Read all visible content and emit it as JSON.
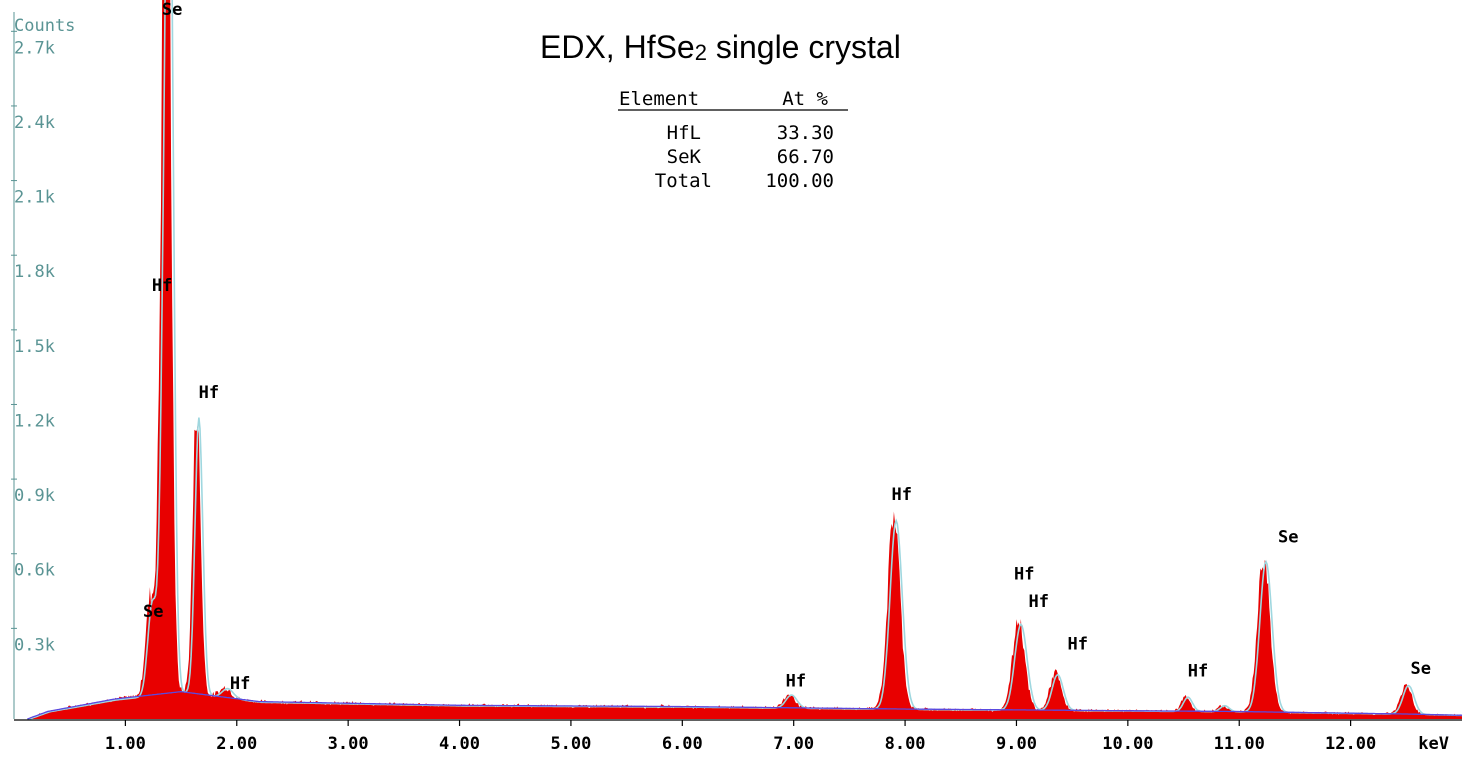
{
  "chart_data": {
    "type": "area",
    "title": {
      "main": "EDX, HfSe",
      "subscript": "2",
      "rest": " single crystal"
    },
    "ylabel": "Counts",
    "xlabel": "keV",
    "xlim": [
      0,
      13.0
    ],
    "ylim": [
      0,
      2850
    ],
    "yticks": [
      {
        "value": 300,
        "label": "0.3k"
      },
      {
        "value": 600,
        "label": "0.6k"
      },
      {
        "value": 900,
        "label": "0.9k"
      },
      {
        "value": 1200,
        "label": "1.2k"
      },
      {
        "value": 1500,
        "label": "1.5k"
      },
      {
        "value": 1800,
        "label": "1.8k"
      },
      {
        "value": 2100,
        "label": "2.1k"
      },
      {
        "value": 2400,
        "label": "2.4k"
      },
      {
        "value": 2700,
        "label": "2.7k"
      }
    ],
    "xticks": [
      {
        "value": 1.0,
        "label": "1.00"
      },
      {
        "value": 2.0,
        "label": "2.00"
      },
      {
        "value": 3.0,
        "label": "3.00"
      },
      {
        "value": 4.0,
        "label": "4.00"
      },
      {
        "value": 5.0,
        "label": "5.00"
      },
      {
        "value": 6.0,
        "label": "6.00"
      },
      {
        "value": 7.0,
        "label": "7.00"
      },
      {
        "value": 8.0,
        "label": "8.00"
      },
      {
        "value": 9.0,
        "label": "9.00"
      },
      {
        "value": 10.0,
        "label": "10.00"
      },
      {
        "value": 11.0,
        "label": "11.00"
      },
      {
        "value": 12.0,
        "label": "12.00"
      }
    ],
    "peaks": [
      {
        "energy": 1.22,
        "height": 380,
        "width": 0.04,
        "label": "Se"
      },
      {
        "energy": 1.38,
        "height": 2800,
        "width": 0.035,
        "label": "Se"
      },
      {
        "energy": 1.34,
        "height": 1640,
        "width": 0.04,
        "label": "Hf"
      },
      {
        "energy": 1.64,
        "height": 1160,
        "width": 0.035,
        "label": "Hf"
      },
      {
        "energy": 1.9,
        "height": 40,
        "width": 0.05,
        "label": "Hf"
      },
      {
        "energy": 6.96,
        "height": 55,
        "width": 0.05,
        "label": "Hf"
      },
      {
        "energy": 7.9,
        "height": 790,
        "width": 0.055,
        "label": "Hf"
      },
      {
        "energy": 9.02,
        "height": 360,
        "width": 0.055,
        "label": "Hf"
      },
      {
        "energy": 9.35,
        "height": 150,
        "width": 0.05,
        "label": "Hf"
      },
      {
        "energy": 10.52,
        "height": 60,
        "width": 0.04,
        "label": "Hf"
      },
      {
        "energy": 10.85,
        "height": 25,
        "width": 0.04,
        "label": ""
      },
      {
        "energy": 11.22,
        "height": 630,
        "width": 0.055,
        "label": "Se"
      },
      {
        "energy": 12.5,
        "height": 120,
        "width": 0.05,
        "label": "Se"
      }
    ],
    "background": [
      [
        0.12,
        0
      ],
      [
        0.3,
        30
      ],
      [
        0.9,
        80
      ],
      [
        1.5,
        110
      ],
      [
        2.2,
        70
      ],
      [
        4.0,
        55
      ],
      [
        6.0,
        50
      ],
      [
        8.0,
        40
      ],
      [
        9.5,
        35
      ],
      [
        11.0,
        30
      ],
      [
        12.5,
        20
      ],
      [
        13.0,
        15
      ]
    ],
    "peak_labels": [
      {
        "text": "Se",
        "energy": 1.42,
        "counts": 2830
      },
      {
        "text": "Hf",
        "energy": 1.33,
        "counts": 1720
      },
      {
        "text": "Hf",
        "energy": 1.75,
        "counts": 1290
      },
      {
        "text": "Se",
        "energy": 1.25,
        "counts": 410
      },
      {
        "text": "Hf",
        "energy": 2.03,
        "counts": 120
      },
      {
        "text": "Hf",
        "energy": 7.02,
        "counts": 130
      },
      {
        "text": "Hf",
        "energy": 7.97,
        "counts": 880
      },
      {
        "text": "Hf",
        "energy": 9.07,
        "counts": 560
      },
      {
        "text": "Hf",
        "energy": 9.2,
        "counts": 450
      },
      {
        "text": "Hf",
        "energy": 9.55,
        "counts": 280
      },
      {
        "text": "Hf",
        "energy": 10.63,
        "counts": 170
      },
      {
        "text": "Se",
        "energy": 11.44,
        "counts": 710
      },
      {
        "text": "Se",
        "energy": 12.63,
        "counts": 180
      }
    ],
    "fill_color": "#e80000",
    "fit_color": "#9fd7df",
    "background_color": "#5a4ae0",
    "axis_color": "#5a9494"
  },
  "quant_table": {
    "headers": [
      "Element",
      "At %"
    ],
    "rows": [
      {
        "element": "HfL",
        "value": "33.30"
      },
      {
        "element": "SeK",
        "value": "66.70"
      },
      {
        "element": "Total",
        "value": "100.00"
      }
    ]
  }
}
